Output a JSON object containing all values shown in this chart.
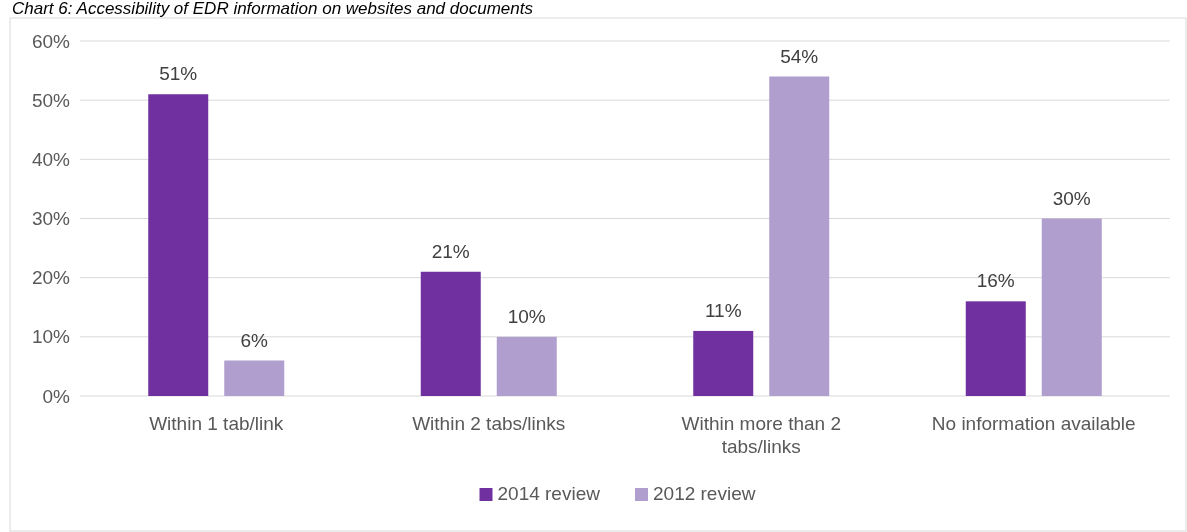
{
  "chart_data": {
    "type": "bar",
    "title": "Chart 6: Accessibility of EDR information on websites and documents",
    "categories": [
      "Within 1 tab/link",
      "Within 2 tabs/links",
      "Within more than 2 tabs/links",
      "No information available"
    ],
    "series": [
      {
        "name": "2014 review",
        "color": "#7030a0",
        "values": [
          51,
          21,
          11,
          16
        ],
        "value_labels": [
          "51%",
          "21%",
          "11%",
          "16%"
        ]
      },
      {
        "name": "2012 review",
        "color": "#b09fce",
        "values": [
          6,
          10,
          54,
          30
        ],
        "value_labels": [
          "6%",
          "10%",
          "54%",
          "30%"
        ]
      }
    ],
    "ylim": [
      0,
      60
    ],
    "yticks": [
      {
        "value": 0,
        "label": "0%"
      },
      {
        "value": 10,
        "label": "10%"
      },
      {
        "value": 20,
        "label": "20%"
      },
      {
        "value": 30,
        "label": "30%"
      },
      {
        "value": 40,
        "label": "40%"
      },
      {
        "value": 50,
        "label": "50%"
      },
      {
        "value": 60,
        "label": "60%"
      }
    ],
    "grid": "y",
    "legend": "bottom"
  }
}
